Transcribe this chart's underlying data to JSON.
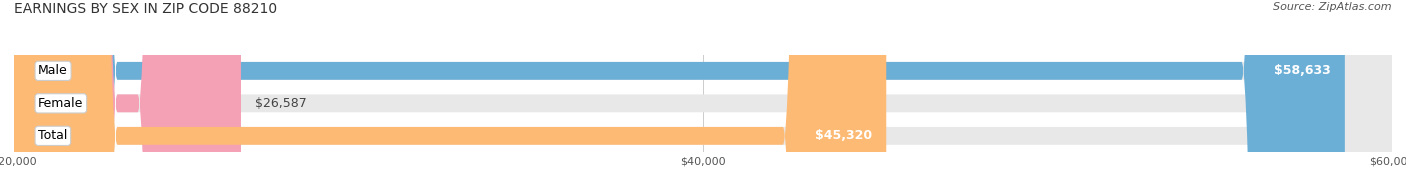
{
  "title": "EARNINGS BY SEX IN ZIP CODE 88210",
  "source": "Source: ZipAtlas.com",
  "categories": [
    "Male",
    "Female",
    "Total"
  ],
  "values": [
    58633,
    26587,
    45320
  ],
  "bar_colors": [
    "#6baed6",
    "#f4a0b5",
    "#fdba74"
  ],
  "bar_bg_color": "#e8e8e8",
  "x_min": 20000,
  "x_max": 60000,
  "x_ticks": [
    20000,
    40000,
    60000
  ],
  "x_tick_labels": [
    "$20,000",
    "$40,000",
    "$60,000"
  ],
  "value_labels": [
    "$58,633",
    "$26,587",
    "$45,320"
  ],
  "bar_height": 0.55,
  "title_fontsize": 10,
  "source_fontsize": 8,
  "value_fontsize": 9,
  "category_fontsize": 9,
  "fig_width": 14.06,
  "fig_height": 1.95,
  "background_color": "#ffffff"
}
